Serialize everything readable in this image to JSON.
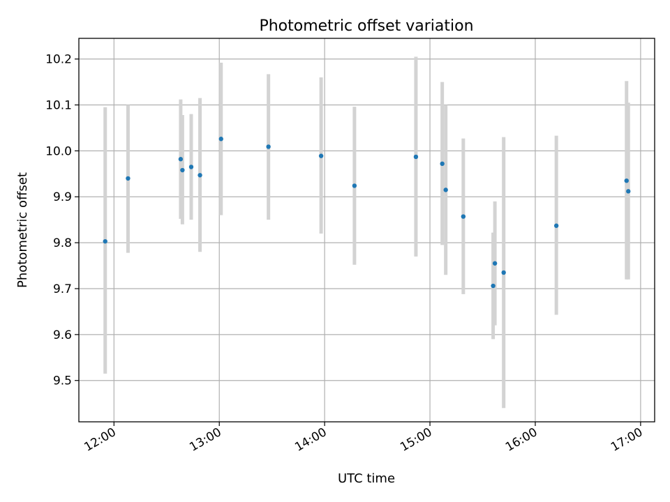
{
  "chart_data": {
    "type": "scatter",
    "title": "Photometric offset variation",
    "xlabel": "UTC time",
    "ylabel": "Photometric offset",
    "x_tick_labels": [
      "12:00",
      "13:00",
      "14:00",
      "15:00",
      "16:00",
      "17:00"
    ],
    "y_tick_labels": [
      "9.5",
      "9.6",
      "9.7",
      "9.8",
      "9.9",
      "10.0",
      "10.1",
      "10.2"
    ],
    "xlim": [
      "11:40",
      "17:08"
    ],
    "ylim": [
      9.41,
      10.245
    ],
    "grid": true,
    "colors": {
      "marker": "#1f77b4",
      "errorbar": "#d3d3d3",
      "grid": "#b0b0b0"
    },
    "series": [
      {
        "points": [
          {
            "x": "11:55",
            "y": 9.803,
            "ylow": 9.515,
            "yhigh": 10.095
          },
          {
            "x": "12:08",
            "y": 9.94,
            "ylow": 9.778,
            "yhigh": 10.1
          },
          {
            "x": "12:38",
            "y": 9.982,
            "ylow": 9.852,
            "yhigh": 10.112
          },
          {
            "x": "12:39",
            "y": 9.958,
            "ylow": 9.84,
            "yhigh": 10.078
          },
          {
            "x": "12:44",
            "y": 9.965,
            "ylow": 9.85,
            "yhigh": 10.08
          },
          {
            "x": "12:49",
            "y": 9.947,
            "ylow": 9.78,
            "yhigh": 10.115
          },
          {
            "x": "13:01",
            "y": 10.026,
            "ylow": 9.86,
            "yhigh": 10.192
          },
          {
            "x": "13:28",
            "y": 10.009,
            "ylow": 9.85,
            "yhigh": 10.167
          },
          {
            "x": "13:58",
            "y": 9.989,
            "ylow": 9.82,
            "yhigh": 10.16
          },
          {
            "x": "14:17",
            "y": 9.924,
            "ylow": 9.752,
            "yhigh": 10.096
          },
          {
            "x": "14:52",
            "y": 9.987,
            "ylow": 9.77,
            "yhigh": 10.205
          },
          {
            "x": "15:07",
            "y": 9.972,
            "ylow": 9.795,
            "yhigh": 10.15
          },
          {
            "x": "15:09",
            "y": 9.915,
            "ylow": 9.73,
            "yhigh": 10.1
          },
          {
            "x": "15:19",
            "y": 9.857,
            "ylow": 9.688,
            "yhigh": 10.027
          },
          {
            "x": "15:36",
            "y": 9.706,
            "ylow": 9.59,
            "yhigh": 9.822
          },
          {
            "x": "15:37",
            "y": 9.755,
            "ylow": 9.62,
            "yhigh": 9.89
          },
          {
            "x": "15:42",
            "y": 9.735,
            "ylow": 9.44,
            "yhigh": 10.03
          },
          {
            "x": "16:12",
            "y": 9.837,
            "ylow": 9.643,
            "yhigh": 10.033
          },
          {
            "x": "16:52",
            "y": 9.935,
            "ylow": 9.72,
            "yhigh": 10.152
          },
          {
            "x": "16:53",
            "y": 9.912,
            "ylow": 9.72,
            "yhigh": 10.105
          }
        ]
      }
    ]
  }
}
